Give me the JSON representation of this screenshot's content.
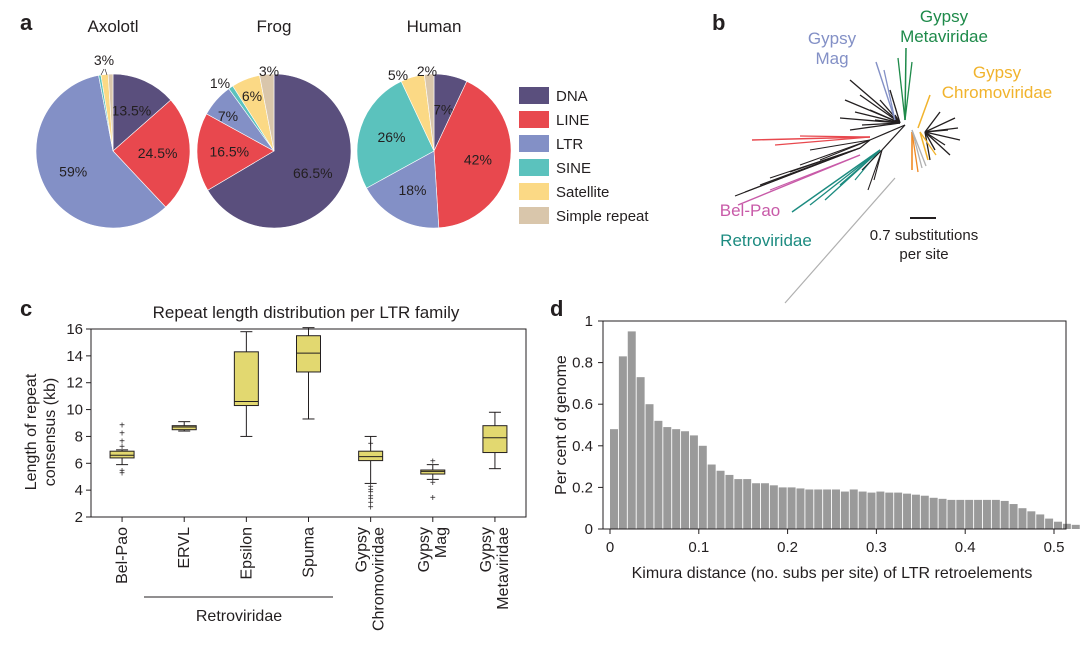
{
  "panels": {
    "a": "a",
    "b": "b",
    "c": "c",
    "d": "d"
  },
  "chart_data": [
    {
      "id": "a",
      "type": "pie",
      "legend": {
        "entries": [
          {
            "name": "DNA",
            "color": "#5a4f7d"
          },
          {
            "name": "LINE",
            "color": "#e8484e"
          },
          {
            "name": "LTR",
            "color": "#8390c6"
          },
          {
            "name": "SINE",
            "color": "#5bc2bd"
          },
          {
            "name": "Satellite",
            "color": "#fbd985"
          },
          {
            "name": "Simple repeat",
            "color": "#d9c6ab"
          }
        ]
      },
      "pies": [
        {
          "title": "Axolotl",
          "slices": [
            {
              "name": "DNA",
              "value": 13.5,
              "label": "13.5%"
            },
            {
              "name": "LINE",
              "value": 24.5,
              "label": "24.5%"
            },
            {
              "name": "LTR",
              "value": 59,
              "label": "59%"
            },
            {
              "name": "SINE",
              "value": 0.5,
              "label": ""
            },
            {
              "name": "Satellite",
              "value": 1.5,
              "label": ""
            },
            {
              "name": "Simple repeat",
              "value": 1,
              "label": ""
            }
          ],
          "outside_label": "3%"
        },
        {
          "title": "Frog",
          "slices": [
            {
              "name": "DNA",
              "value": 66.5,
              "label": "66.5%"
            },
            {
              "name": "LINE",
              "value": 16.5,
              "label": "16.5%"
            },
            {
              "name": "LTR",
              "value": 7,
              "label": "7%"
            },
            {
              "name": "SINE",
              "value": 1,
              "label": "1%"
            },
            {
              "name": "Satellite",
              "value": 6,
              "label": "6%"
            },
            {
              "name": "Simple repeat",
              "value": 3,
              "label": "3%"
            }
          ]
        },
        {
          "title": "Human",
          "slices": [
            {
              "name": "DNA",
              "value": 7,
              "label": "7%"
            },
            {
              "name": "LINE",
              "value": 42,
              "label": "42%"
            },
            {
              "name": "LTR",
              "value": 18,
              "label": "18%"
            },
            {
              "name": "SINE",
              "value": 26,
              "label": "26%"
            },
            {
              "name": "Satellite",
              "value": 5,
              "label": "5%"
            },
            {
              "name": "Simple repeat",
              "value": 2,
              "label": "2%"
            }
          ]
        }
      ]
    },
    {
      "id": "b",
      "type": "tree",
      "clade_labels": [
        {
          "lines": [
            "Gypsy",
            "Metaviridae"
          ],
          "color": "#1e8a4a"
        },
        {
          "lines": [
            "Gypsy",
            "Mag"
          ],
          "color": "#8390c6"
        },
        {
          "lines": [
            "Gypsy",
            "Chromoviridae"
          ],
          "color": "#f1b32c"
        },
        {
          "lines": [
            "Bel-Pao"
          ],
          "color": "#c85aa8"
        },
        {
          "lines": [
            "Retroviridae"
          ],
          "color": "#1c8b80"
        }
      ],
      "scale_label": [
        "0.7 substitutions",
        "per site"
      ],
      "scale_value": 0.7
    },
    {
      "id": "c",
      "type": "boxplot",
      "title": "Repeat length distribution per LTR family",
      "ylabel": [
        "Length of repeat",
        "consensus (kb)"
      ],
      "ylim": [
        2,
        16
      ],
      "yticks": [
        "2",
        "4",
        "6",
        "8",
        "10",
        "12",
        "14",
        "16"
      ],
      "box_color": "#e2d870",
      "boxes": [
        {
          "label": [
            "Bel-Pao"
          ],
          "min": 5.9,
          "q1": 6.4,
          "median": 6.6,
          "q3": 6.9,
          "max": 7.0,
          "outliers": [
            5.3,
            5.5,
            7.3,
            7.7,
            8.3,
            8.9
          ]
        },
        {
          "label": [
            "ERVL"
          ],
          "min": 8.4,
          "q1": 8.5,
          "median": 8.7,
          "q3": 8.8,
          "max": 9.1,
          "outliers": []
        },
        {
          "label": [
            "Epsilon"
          ],
          "min": 8.0,
          "q1": 10.3,
          "median": 10.6,
          "q3": 14.3,
          "max": 15.8,
          "outliers": []
        },
        {
          "label": [
            "Spuma"
          ],
          "min": 9.3,
          "q1": 12.8,
          "median": 14.2,
          "q3": 15.5,
          "max": 16.1,
          "outliers": []
        },
        {
          "label": [
            "Gypsy",
            "Chromoviridae"
          ],
          "min": 4.5,
          "q1": 6.2,
          "median": 6.5,
          "q3": 6.9,
          "max": 8.0,
          "outliers": [
            2.8,
            3.1,
            3.4,
            3.6,
            3.9,
            4.1,
            4.3,
            7.5
          ]
        },
        {
          "label": [
            "Gypsy",
            "Mag"
          ],
          "min": 4.8,
          "q1": 5.2,
          "median": 5.4,
          "q3": 5.5,
          "max": 5.9,
          "outliers": [
            3.5,
            4.6,
            6.2
          ]
        },
        {
          "label": [
            "Gypsy",
            "Metaviridae"
          ],
          "min": 5.6,
          "q1": 6.8,
          "median": 7.9,
          "q3": 8.8,
          "max": 9.8,
          "outliers": []
        }
      ],
      "group_label": "Retroviridae"
    },
    {
      "id": "d",
      "type": "bar",
      "xlabel": "Kimura distance (no. subs per site) of LTR retroelements",
      "ylabel": "Per cent of genome",
      "xlim": [
        0,
        0.5
      ],
      "ylim": [
        0,
        1
      ],
      "xticks": [
        "0",
        "0.1",
        "0.2",
        "0.3",
        "0.4",
        "0.5"
      ],
      "yticks": [
        "0",
        "0.2",
        "0.4",
        "0.6",
        "0.8",
        "1"
      ],
      "bin_width": 0.01,
      "bar_color": "#9a9a9a",
      "values": [
        0.48,
        0.83,
        0.95,
        0.73,
        0.6,
        0.52,
        0.49,
        0.48,
        0.47,
        0.45,
        0.4,
        0.31,
        0.28,
        0.26,
        0.24,
        0.24,
        0.22,
        0.22,
        0.21,
        0.2,
        0.2,
        0.195,
        0.19,
        0.19,
        0.19,
        0.19,
        0.18,
        0.19,
        0.18,
        0.175,
        0.18,
        0.175,
        0.175,
        0.17,
        0.165,
        0.16,
        0.15,
        0.145,
        0.14,
        0.14,
        0.14,
        0.14,
        0.14,
        0.14,
        0.135,
        0.12,
        0.1,
        0.085,
        0.07,
        0.05,
        0.035,
        0.025,
        0.02,
        0.015,
        0.01
      ]
    }
  ]
}
